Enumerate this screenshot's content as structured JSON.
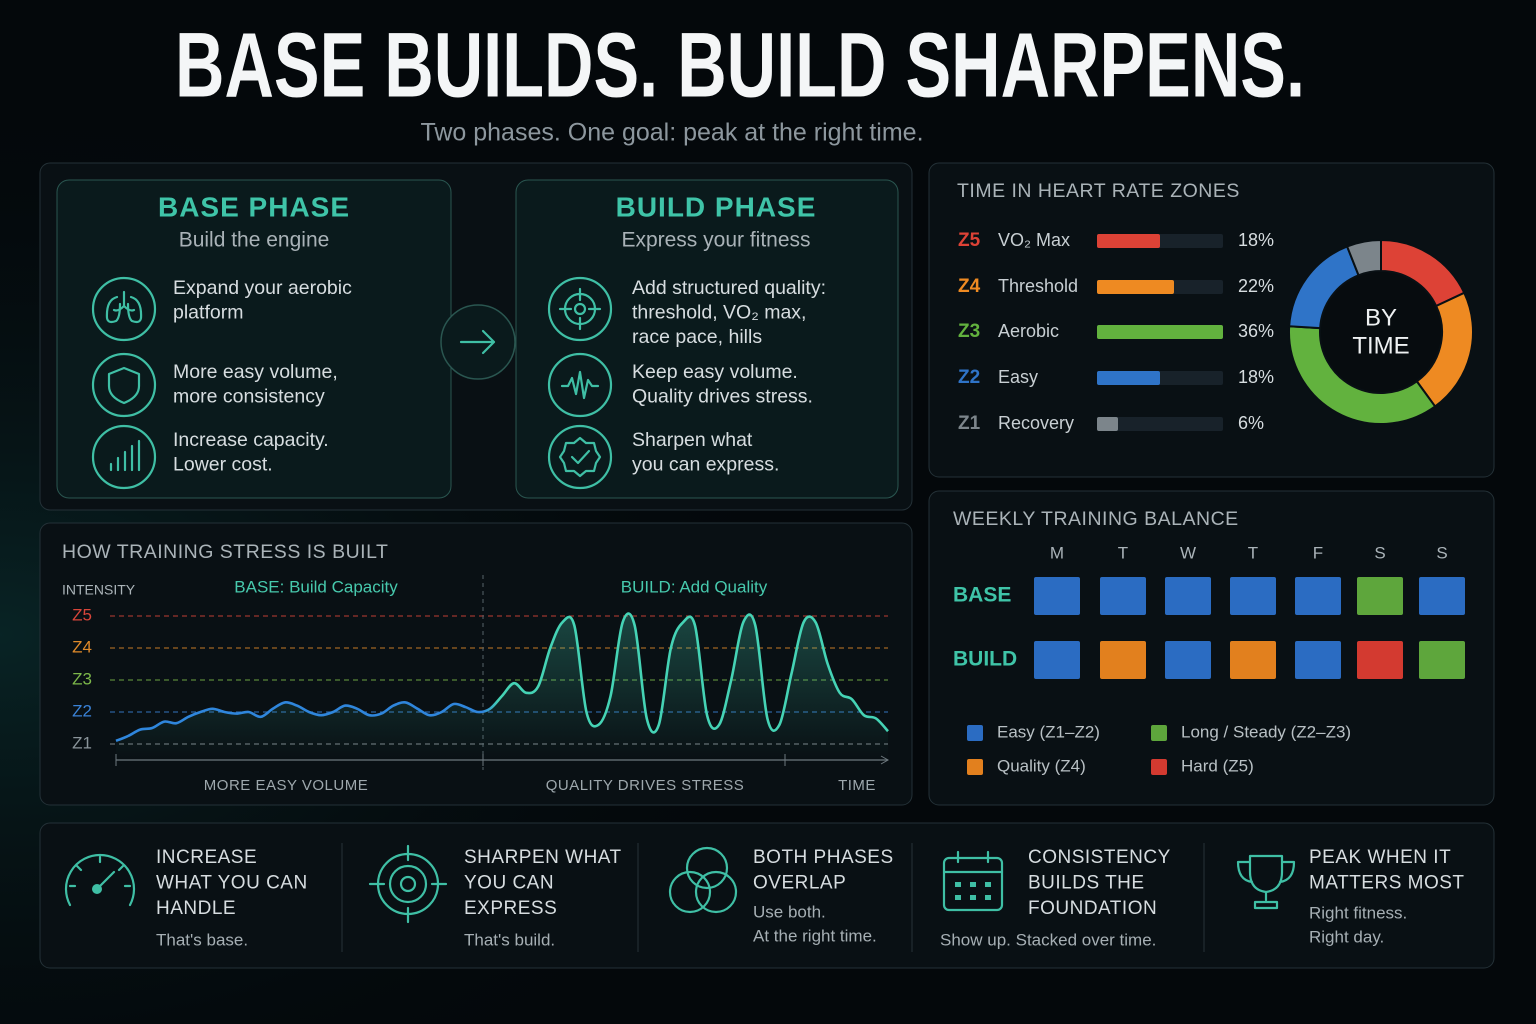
{
  "header": {
    "title": "BASE BUILDS. BUILD SHARPENS.",
    "subtitle": "Two phases. One goal: peak at the right time."
  },
  "phases": [
    {
      "title": "BASE PHASE",
      "subtitle": "Build the engine",
      "items": [
        {
          "lines": [
            "Expand your aerobic",
            "platform"
          ]
        },
        {
          "lines": [
            "More easy volume,",
            "more consistency"
          ]
        },
        {
          "lines": [
            "Increase capacity.",
            "Lower cost."
          ]
        }
      ]
    },
    {
      "title": "BUILD PHASE",
      "subtitle": "Express your fitness",
      "items": [
        {
          "lines": [
            "Add structured quality:",
            "threshold, VO₂ max,",
            "race pace, hills"
          ]
        },
        {
          "lines": [
            "Keep easy volume.",
            "Quality drives stress."
          ]
        },
        {
          "lines": [
            "Sharpen what",
            "you can express."
          ]
        }
      ]
    }
  ],
  "chart_data": [
    {
      "type": "bar",
      "title": "TIME IN HEART RATE ZONES",
      "codes": [
        "Z5",
        "Z4",
        "Z3",
        "Z2",
        "Z1"
      ],
      "categories": [
        "VO₂ Max",
        "Threshold",
        "Aerobic",
        "Easy",
        "Recovery"
      ],
      "values": [
        18,
        22,
        36,
        18,
        6
      ],
      "value_labels": [
        "18%",
        "22%",
        "36%",
        "18%",
        "6%"
      ],
      "colors": [
        "#dd4236",
        "#ee8a22",
        "#62b23e",
        "#2f74c8",
        "#7c858b"
      ],
      "center_label": [
        "BY",
        "TIME"
      ]
    },
    {
      "type": "line",
      "title": "HOW TRAINING STRESS IS BUILT",
      "ylabel": "INTENSITY",
      "annotations": [
        "BASE: Build Capacity",
        "BUILD: Add Quality"
      ],
      "xlabels": [
        "MORE EASY VOLUME",
        "QUALITY DRIVES STRESS",
        "TIME"
      ],
      "ylim": [
        0.5,
        5.5
      ],
      "yticks": [
        {
          "value": 1,
          "label": "Z1"
        },
        {
          "value": 2,
          "label": "Z2"
        },
        {
          "value": 3,
          "label": "Z3"
        },
        {
          "value": 4,
          "label": "Z4"
        },
        {
          "value": 5,
          "label": "Z5"
        }
      ],
      "ytick_colors": [
        "#8a949a",
        "#3a82d6",
        "#7cb84a",
        "#e08a2a",
        "#d8453a"
      ],
      "line_colors": [
        "#2f86dc",
        "#45d3b5"
      ],
      "values": [
        1.1,
        1.25,
        1.45,
        1.5,
        1.7,
        1.65,
        1.85,
        2.0,
        2.1,
        2.0,
        1.95,
        2.0,
        1.85,
        2.1,
        2.3,
        2.2,
        2.0,
        1.9,
        2.0,
        2.2,
        2.1,
        1.9,
        1.95,
        2.2,
        2.3,
        2.1,
        1.9,
        2.0,
        2.25,
        2.15,
        2.0,
        2.1,
        2.5,
        2.9,
        2.6,
        2.8,
        4.0,
        4.8,
        4.7,
        2.0,
        1.6,
        2.5,
        4.8,
        4.7,
        1.8,
        1.6,
        4.0,
        4.8,
        4.7,
        1.9,
        1.6,
        3.0,
        4.8,
        4.7,
        1.8,
        1.6,
        3.2,
        4.8,
        4.8,
        3.5,
        2.6,
        2.4,
        1.9,
        1.8,
        1.4
      ]
    },
    {
      "type": "grid",
      "title": "WEEKLY TRAINING BALANCE",
      "columns": [
        "M",
        "T",
        "W",
        "T",
        "F",
        "S",
        "S"
      ],
      "rows": [
        {
          "label": "BASE",
          "colors": [
            "#2b6cc2",
            "#2b6cc2",
            "#2b6cc2",
            "#2b6cc2",
            "#2b6cc2",
            "#5ea63c",
            "#2b6cc2"
          ]
        },
        {
          "label": "BUILD",
          "colors": [
            "#2b6cc2",
            "#e2801e",
            "#2b6cc2",
            "#e2801e",
            "#2b6cc2",
            "#d33a30",
            "#5ea63c"
          ]
        }
      ],
      "legend": [
        {
          "label": "Easy (Z1–Z2)",
          "color": "#2b6cc2"
        },
        {
          "label": "Long / Steady (Z2–Z3)",
          "color": "#5ea63c"
        },
        {
          "label": "Quality (Z4)",
          "color": "#e2801e"
        },
        {
          "label": "Hard (Z5)",
          "color": "#d33a30"
        }
      ]
    }
  ],
  "takeaways": [
    {
      "title_lines": [
        "INCREASE",
        "WHAT YOU CAN",
        "HANDLE"
      ],
      "text_lines": [
        "That's base."
      ]
    },
    {
      "title_lines": [
        "SHARPEN WHAT",
        "YOU CAN",
        "EXPRESS"
      ],
      "text_lines": [
        "That's build."
      ]
    },
    {
      "title_lines": [
        "BOTH PHASES",
        "OVERLAP"
      ],
      "text_lines": [
        "Use both.",
        "At the right time."
      ]
    },
    {
      "title_lines": [
        "CONSISTENCY",
        "BUILDS THE",
        "FOUNDATION"
      ],
      "text_lines": [
        "Show up. Stacked over time."
      ]
    },
    {
      "title_lines": [
        "PEAK WHEN IT",
        "MATTERS MOST"
      ],
      "text_lines": [
        "Right fitness.",
        "Right day."
      ]
    }
  ]
}
